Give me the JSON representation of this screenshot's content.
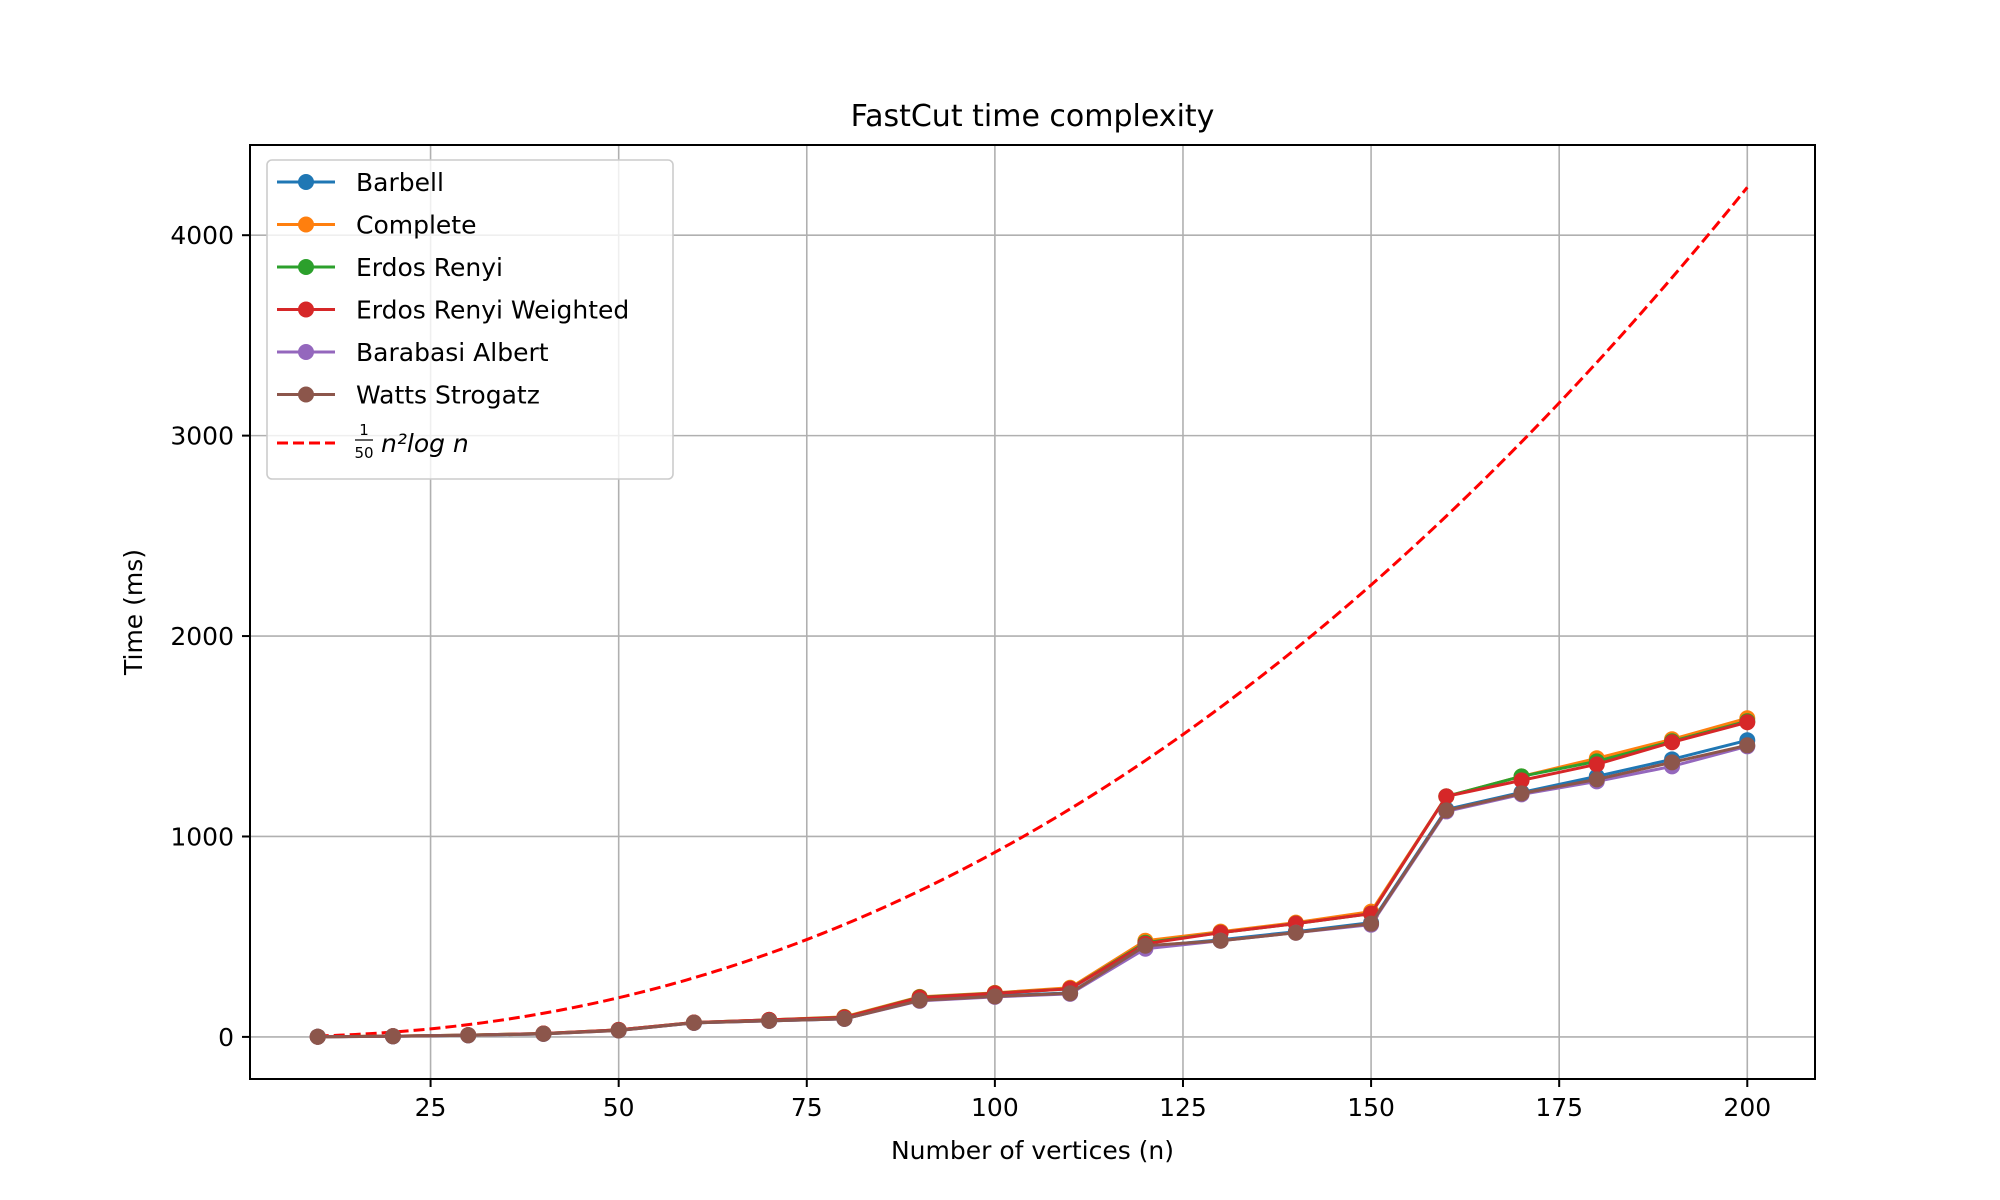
{
  "chart_data": {
    "type": "line",
    "title": "FastCut time complexity",
    "xlabel": "Number of vertices (n)",
    "ylabel": "Time (ms)",
    "xlim": [
      1,
      209
    ],
    "ylim": [
      -210,
      4450
    ],
    "xticks": [
      25,
      50,
      75,
      100,
      125,
      150,
      175,
      200
    ],
    "yticks": [
      0,
      1000,
      2000,
      3000,
      4000
    ],
    "grid": true,
    "legend_position": "upper-left",
    "x": [
      10,
      20,
      30,
      40,
      50,
      60,
      70,
      80,
      90,
      100,
      110,
      120,
      130,
      140,
      150,
      160,
      170,
      180,
      190,
      200
    ],
    "series": [
      {
        "name": "Barbell",
        "color": "#1f77b4",
        "marker": "circle",
        "values": [
          1,
          3,
          8,
          15,
          33,
          70,
          80,
          90,
          185,
          205,
          220,
          450,
          485,
          525,
          570,
          1135,
          1220,
          1300,
          1385,
          1480
        ]
      },
      {
        "name": "Complete",
        "color": "#ff7f0e",
        "marker": "circle",
        "values": [
          1,
          4,
          9,
          17,
          35,
          72,
          85,
          100,
          200,
          220,
          245,
          480,
          525,
          570,
          625,
          1200,
          1300,
          1390,
          1485,
          1590
        ]
      },
      {
        "name": "Erdos Renyi",
        "color": "#2ca02c",
        "marker": "circle",
        "values": [
          1,
          4,
          9,
          17,
          35,
          72,
          85,
          98,
          198,
          218,
          240,
          470,
          520,
          565,
          615,
          1200,
          1300,
          1375,
          1475,
          1575
        ]
      },
      {
        "name": "Erdos Renyi Weighted",
        "color": "#d62728",
        "marker": "circle",
        "values": [
          1,
          4,
          9,
          17,
          35,
          72,
          85,
          97,
          196,
          217,
          240,
          465,
          520,
          565,
          615,
          1200,
          1280,
          1360,
          1470,
          1570
        ]
      },
      {
        "name": "Barabasi Albert",
        "color": "#9467bd",
        "marker": "circle",
        "values": [
          1,
          3,
          8,
          15,
          32,
          70,
          80,
          90,
          180,
          200,
          215,
          440,
          480,
          520,
          560,
          1125,
          1210,
          1275,
          1350,
          1450
        ]
      },
      {
        "name": "Watts Strogatz",
        "color": "#8c564b",
        "marker": "circle",
        "values": [
          1,
          3,
          8,
          15,
          32,
          70,
          80,
          90,
          182,
          202,
          218,
          455,
          480,
          520,
          565,
          1130,
          1215,
          1285,
          1370,
          1455
        ]
      }
    ],
    "reference": {
      "label_fraction_numerator": "1",
      "label_fraction_denominator": "50",
      "label_formula": "n²log n",
      "color": "#ff0000",
      "style": "dashed",
      "coefficient": 0.02
    }
  }
}
